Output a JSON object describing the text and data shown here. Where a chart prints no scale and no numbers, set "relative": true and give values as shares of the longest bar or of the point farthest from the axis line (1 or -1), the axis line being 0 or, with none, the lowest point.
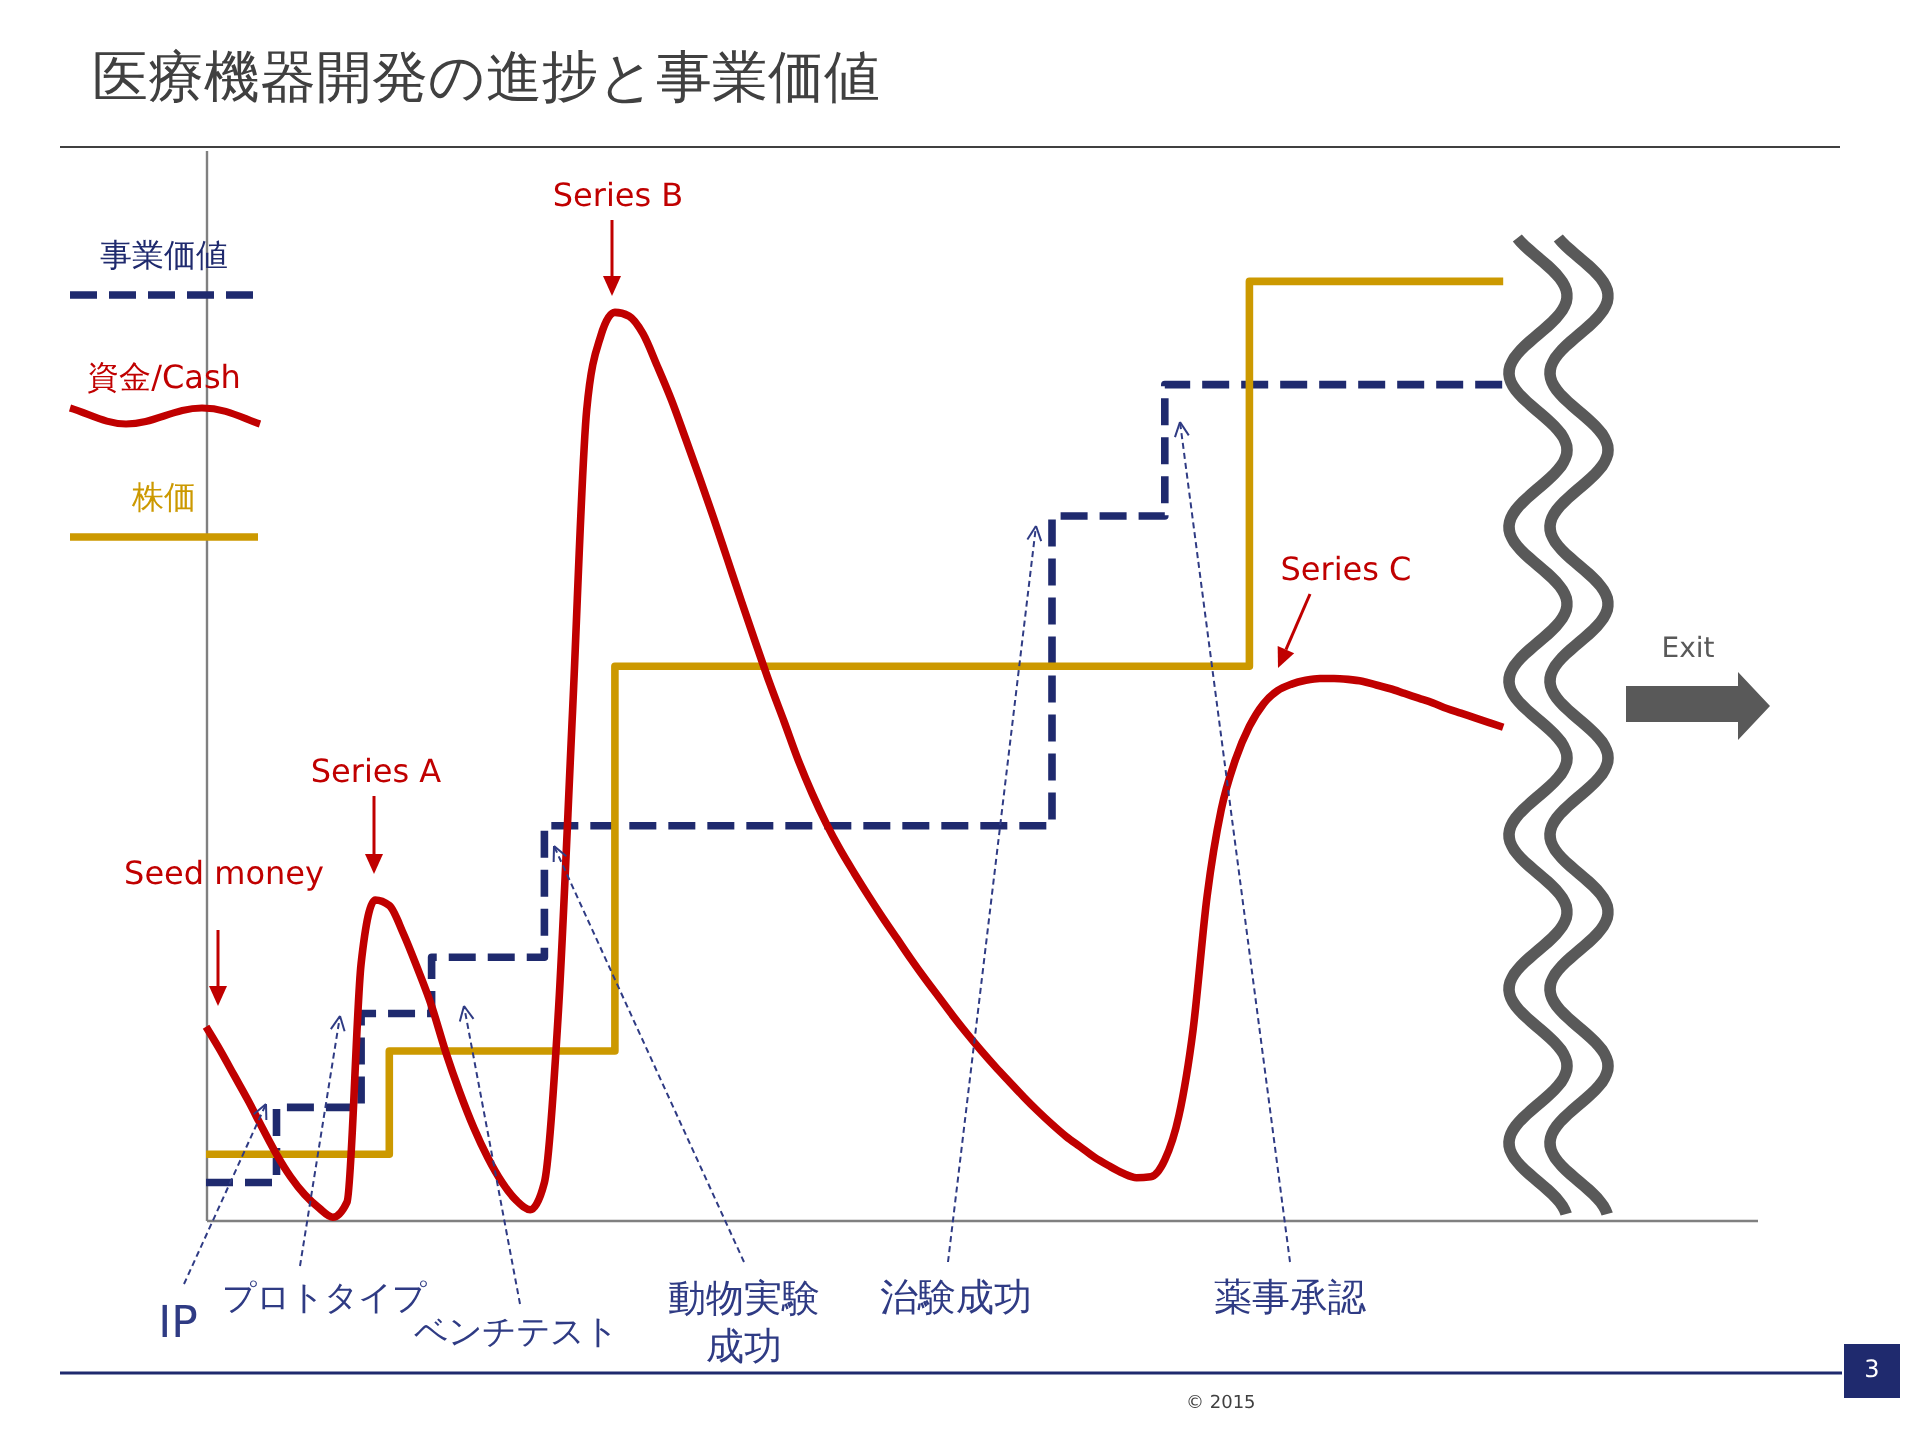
{
  "chart_data": {
    "type": "line",
    "title": "医療機器開発の進捗と事業価値",
    "relative": true,
    "legend": "top left",
    "categories": [
      null,
      null,
      null,
      null,
      null,
      null,
      null,
      null,
      null,
      null,
      null,
      null,
      null,
      null,
      null,
      null,
      null,
      null,
      null,
      null,
      null,
      null,
      null,
      null,
      null,
      null,
      null,
      null,
      null,
      null,
      null,
      null,
      null,
      null,
      null,
      null,
      null,
      null,
      null,
      null,
      null,
      null,
      null,
      null,
      null,
      null,
      null,
      null,
      null,
      null,
      null,
      null,
      null,
      null,
      null,
      null,
      null,
      null,
      null,
      null,
      null,
      null,
      null,
      null,
      null,
      null,
      null,
      null,
      null,
      null,
      null,
      null,
      null,
      null,
      null,
      null,
      null,
      null,
      null,
      null,
      null,
      null,
      null,
      null,
      null,
      null,
      null,
      null,
      null,
      null,
      null,
      null,
      null,
      null,
      null,
      null,
      null,
      null,
      null,
      null,
      null,
      null,
      null,
      null,
      null,
      null,
      null,
      null,
      null,
      null,
      null
    ],
    "series": [
      {
        "name": "事業価値",
        "type": "step",
        "color": "#1f2a6e",
        "line_style": "dashed",
        "values": [
          0.04,
          0.04,
          0.04,
          0.04,
          0.04,
          0.12,
          0.12,
          0.12,
          0.12,
          0.12,
          0.12,
          0.22,
          0.22,
          0.22,
          0.22,
          0.22,
          0.28,
          0.28,
          0.28,
          0.28,
          0.28,
          0.28,
          0.28,
          0.28,
          0.42,
          0.42,
          0.42,
          0.42,
          0.42,
          0.42,
          0.42,
          0.42,
          0.42,
          0.42,
          0.42,
          0.42,
          0.42,
          0.42,
          0.42,
          0.42,
          0.42,
          0.42,
          0.42,
          0.42,
          0.42,
          0.42,
          0.42,
          0.42,
          0.42,
          0.42,
          0.42,
          0.42,
          0.42,
          0.42,
          0.42,
          0.42,
          0.42,
          0.42,
          0.42,
          0.42,
          0.75,
          0.75,
          0.75,
          0.75,
          0.75,
          0.75,
          0.75,
          0.75,
          0.89,
          0.89,
          0.89,
          0.89,
          0.89,
          0.89,
          0.89,
          0.89,
          0.89,
          0.89,
          0.89,
          0.89,
          0.89,
          0.89,
          0.89,
          0.89,
          0.89,
          0.89,
          0.89,
          0.89,
          0.89,
          0.89,
          0.89,
          0.89,
          0.89,
          null,
          null,
          null,
          null,
          null,
          null,
          null,
          null,
          null,
          null,
          null,
          null,
          null,
          null,
          null,
          null,
          null,
          null
        ]
      },
      {
        "name": "資金/Cash",
        "type": "line",
        "color": "#c00000",
        "values": [
          0.206,
          0.181,
          0.154,
          0.127,
          0.098,
          0.07,
          0.046,
          0.027,
          0.013,
          0.003,
          0.019,
          0.273,
          0.341,
          0.335,
          0.305,
          0.268,
          0.228,
          0.179,
          0.136,
          0.098,
          0.066,
          0.04,
          0.021,
          0.011,
          0.04,
          0.224,
          0.543,
          0.863,
          0.942,
          0.967,
          0.963,
          0.944,
          0.91,
          0.874,
          0.833,
          0.791,
          0.748,
          0.703,
          0.658,
          0.614,
          0.571,
          0.531,
          0.49,
          0.454,
          0.422,
          0.394,
          0.369,
          0.345,
          0.322,
          0.3,
          0.278,
          0.257,
          0.237,
          0.217,
          0.198,
          0.18,
          0.163,
          0.147,
          0.131,
          0.116,
          0.102,
          0.089,
          0.078,
          0.067,
          0.058,
          0.05,
          0.045,
          0.046,
          0.064,
          0.111,
          0.202,
          0.345,
          0.437,
          0.49,
          0.526,
          0.55,
          0.564,
          0.571,
          0.575,
          0.577,
          0.577,
          0.576,
          0.574,
          0.57,
          0.566,
          0.561,
          0.556,
          0.551,
          0.545,
          0.54,
          0.535,
          0.53,
          0.525,
          null,
          null,
          null,
          null,
          null,
          null,
          null,
          null,
          null,
          null,
          null,
          null,
          null,
          null,
          null,
          null,
          null,
          null
        ]
      },
      {
        "name": "株価",
        "type": "step",
        "color": "#cc9900",
        "values": [
          0.07,
          0.07,
          0.07,
          0.07,
          0.07,
          0.07,
          0.07,
          0.07,
          0.07,
          0.07,
          0.07,
          0.07,
          0.07,
          0.18,
          0.18,
          0.18,
          0.18,
          0.18,
          0.18,
          0.18,
          0.18,
          0.18,
          0.18,
          0.18,
          0.18,
          0.18,
          0.18,
          0.18,
          0.18,
          0.59,
          0.59,
          0.59,
          0.59,
          0.59,
          0.59,
          0.59,
          0.59,
          0.59,
          0.59,
          0.59,
          0.59,
          0.59,
          0.59,
          0.59,
          0.59,
          0.59,
          0.59,
          0.59,
          0.59,
          0.59,
          0.59,
          0.59,
          0.59,
          0.59,
          0.59,
          0.59,
          0.59,
          0.59,
          0.59,
          0.59,
          0.59,
          0.59,
          0.59,
          0.59,
          0.59,
          0.59,
          0.59,
          0.59,
          0.59,
          0.59,
          0.59,
          0.59,
          0.59,
          0.59,
          1,
          1,
          1,
          1,
          1,
          1,
          1,
          1,
          1,
          1,
          1,
          1,
          1,
          1,
          1,
          1,
          1,
          1,
          1,
          null,
          null,
          null,
          null,
          null,
          null,
          null,
          null,
          null,
          null,
          null,
          null,
          null,
          null,
          null,
          null,
          null,
          null
        ]
      }
    ],
    "annotations": [
      "Seed money",
      "Series A",
      "Series B",
      "Series C",
      "IP",
      "プロトタイプ",
      "ベンチテスト",
      "動物実験成功",
      "治験成功",
      "薬事承認",
      "Exit",
      "© 2015",
      "3"
    ]
  }
}
